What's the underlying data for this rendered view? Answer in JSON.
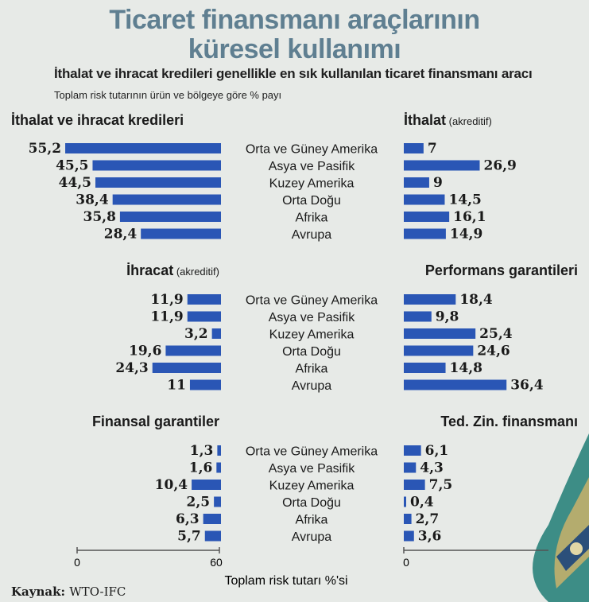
{
  "title_line1": "Ticaret finansmanı araçlarının",
  "title_line2": "küresel kullanımı",
  "subtitle": "İthalat ve ihracat kredileri genellikle en sık kullanılan ticaret finansmanı aracı",
  "note": "Toplam risk tutarının ürün ve bölgeye göre % payı",
  "axis_label": "Toplam risk tutarı %'si",
  "axis_ticks": [
    "0",
    "60",
    "0"
  ],
  "source_label": "Kaynak:",
  "source_value": "WTO-IFC",
  "colors": {
    "bar": "#2a56b5",
    "title": "#5f7f91",
    "background": "#e7eae7"
  },
  "chart_data": [
    {
      "type": "bar",
      "orientation": "horizontal",
      "direction": "left",
      "title": "İthalat ve ihracat kredileri",
      "title_suffix": "",
      "categories": [
        "Orta ve Güney Amerika",
        "Asya ve Pasifik",
        "Kuzey Amerika",
        "Orta Doğu",
        "Afrika",
        "Avrupa"
      ],
      "values": [
        55.2,
        45.5,
        44.5,
        38.4,
        35.8,
        28.4
      ],
      "value_labels": [
        "55,2",
        "45,5",
        "44,5",
        "38,4",
        "35,8",
        "28,4"
      ],
      "xlim": [
        0,
        60
      ]
    },
    {
      "type": "bar",
      "orientation": "horizontal",
      "direction": "right",
      "title": "İthalat",
      "title_suffix": "(akreditif)",
      "categories": [
        "Orta ve Güney Amerika",
        "Asya ve Pasifik",
        "Kuzey Amerika",
        "Orta Doğu",
        "Afrika",
        "Avrupa"
      ],
      "values": [
        7,
        26.9,
        9,
        14.5,
        16.1,
        14.9
      ],
      "value_labels": [
        "7",
        "26,9",
        "9",
        "14,5",
        "16,1",
        "14,9"
      ],
      "xlim": [
        0,
        60
      ]
    },
    {
      "type": "bar",
      "orientation": "horizontal",
      "direction": "left",
      "title": "İhracat",
      "title_suffix": "(akreditif)",
      "categories": [
        "Orta ve Güney Amerika",
        "Asya ve Pasifik",
        "Kuzey Amerika",
        "Orta Doğu",
        "Afrika",
        "Avrupa"
      ],
      "values": [
        11.9,
        11.9,
        3.2,
        19.6,
        24.3,
        11
      ],
      "value_labels": [
        "11,9",
        "11,9",
        "3,2",
        "19,6",
        "24,3",
        "11"
      ],
      "xlim": [
        0,
        60
      ]
    },
    {
      "type": "bar",
      "orientation": "horizontal",
      "direction": "right",
      "title": "Performans garantileri",
      "title_suffix": "",
      "categories": [
        "Orta ve Güney Amerika",
        "Asya ve Pasifik",
        "Kuzey Amerika",
        "Orta Doğu",
        "Afrika",
        "Avrupa"
      ],
      "values": [
        18.4,
        9.8,
        25.4,
        24.6,
        14.8,
        36.4
      ],
      "value_labels": [
        "18,4",
        "9,8",
        "25,4",
        "24,6",
        "14,8",
        "36,4"
      ],
      "xlim": [
        0,
        60
      ]
    },
    {
      "type": "bar",
      "orientation": "horizontal",
      "direction": "left",
      "title": "Finansal garantiler",
      "title_suffix": "",
      "categories": [
        "Orta ve Güney Amerika",
        "Asya ve Pasifik",
        "Kuzey Amerika",
        "Orta Doğu",
        "Afrika",
        "Avrupa"
      ],
      "values": [
        1.3,
        1.6,
        10.4,
        2.5,
        6.3,
        5.7
      ],
      "value_labels": [
        "1,3",
        "1,6",
        "10,4",
        "2,5",
        "6,3",
        "5,7"
      ],
      "xlim": [
        0,
        60
      ]
    },
    {
      "type": "bar",
      "orientation": "horizontal",
      "direction": "right",
      "title": "Ted. Zin. finansmanı",
      "title_suffix": "",
      "categories": [
        "Orta ve Güney Amerika",
        "Asya ve Pasifik",
        "Kuzey Amerika",
        "Orta Doğu",
        "Afrika",
        "Avrupa"
      ],
      "values": [
        6.1,
        4.3,
        7.5,
        0.4,
        2.7,
        3.6
      ],
      "value_labels": [
        "6,1",
        "4,3",
        "7,5",
        "0,4",
        "2,7",
        "3,6"
      ],
      "xlim": [
        0,
        60
      ]
    }
  ]
}
